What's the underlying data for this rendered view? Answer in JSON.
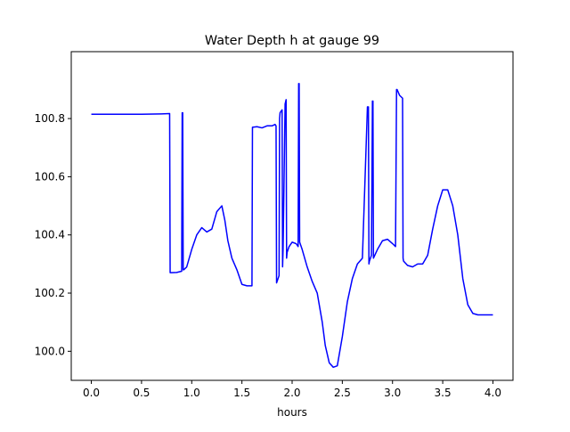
{
  "chart_data": {
    "type": "line",
    "title": "Water Depth h at gauge 99",
    "xlabel": "hours",
    "ylabel": "",
    "xlim": [
      -0.2,
      4.2
    ],
    "ylim": [
      99.9,
      101.03
    ],
    "xticks": [
      0.0,
      0.5,
      1.0,
      1.5,
      2.0,
      2.5,
      3.0,
      3.5,
      4.0
    ],
    "xtick_labels": [
      "0.0",
      "0.5",
      "1.0",
      "1.5",
      "2.0",
      "2.5",
      "3.0",
      "3.5",
      "4.0"
    ],
    "yticks": [
      100.0,
      100.2,
      100.4,
      100.6,
      100.8
    ],
    "ytick_labels": [
      "100.0",
      "100.2",
      "100.4",
      "100.6",
      "100.8"
    ],
    "grid": false,
    "series": [
      {
        "color": "#0000ff",
        "x": [
          0.0,
          0.3,
          0.5,
          0.7,
          0.78,
          0.785,
          0.8,
          0.85,
          0.9,
          0.905,
          0.91,
          0.915,
          0.92,
          0.95,
          1.0,
          1.05,
          1.1,
          1.15,
          1.2,
          1.25,
          1.3,
          1.33,
          1.36,
          1.4,
          1.45,
          1.5,
          1.55,
          1.58,
          1.6,
          1.605,
          1.65,
          1.7,
          1.75,
          1.8,
          1.83,
          1.84,
          1.845,
          1.87,
          1.875,
          1.88,
          1.9,
          1.905,
          1.91,
          1.93,
          1.94,
          1.945,
          1.95,
          1.97,
          2.0,
          2.04,
          2.06,
          2.065,
          2.07,
          2.075,
          2.1,
          2.15,
          2.2,
          2.25,
          2.3,
          2.33,
          2.37,
          2.41,
          2.45,
          2.5,
          2.55,
          2.6,
          2.65,
          2.7,
          2.75,
          2.76,
          2.765,
          2.77,
          2.79,
          2.8,
          2.805,
          2.81,
          2.85,
          2.9,
          2.95,
          3.0,
          3.03,
          3.04,
          3.045,
          3.07,
          3.1,
          3.105,
          3.11,
          3.15,
          3.2,
          3.25,
          3.3,
          3.35,
          3.4,
          3.45,
          3.5,
          3.55,
          3.6,
          3.65,
          3.7,
          3.75,
          3.8,
          3.85,
          3.9,
          3.95,
          4.0
        ],
        "y": [
          100.815,
          100.815,
          100.815,
          100.816,
          100.817,
          100.27,
          100.27,
          100.271,
          100.275,
          100.82,
          100.82,
          100.28,
          100.28,
          100.29,
          100.35,
          100.4,
          100.425,
          100.41,
          100.42,
          100.48,
          100.5,
          100.45,
          100.38,
          100.32,
          100.28,
          100.23,
          100.225,
          100.225,
          100.225,
          100.77,
          100.772,
          100.768,
          100.775,
          100.775,
          100.78,
          100.775,
          100.235,
          100.26,
          100.8,
          100.82,
          100.83,
          100.29,
          100.35,
          100.85,
          100.865,
          100.32,
          100.34,
          100.36,
          100.375,
          100.37,
          100.36,
          100.92,
          100.92,
          100.375,
          100.35,
          100.29,
          100.24,
          100.2,
          100.1,
          100.02,
          99.96,
          99.945,
          99.95,
          100.05,
          100.17,
          100.25,
          100.3,
          100.32,
          100.84,
          100.84,
          100.3,
          100.31,
          100.33,
          100.86,
          100.86,
          100.32,
          100.35,
          100.38,
          100.385,
          100.37,
          100.36,
          100.9,
          100.9,
          100.88,
          100.87,
          100.32,
          100.31,
          100.295,
          100.29,
          100.3,
          100.3,
          100.33,
          100.42,
          100.5,
          100.555,
          100.555,
          100.5,
          100.4,
          100.25,
          100.16,
          100.13,
          100.125,
          100.125,
          100.125,
          100.125
        ]
      }
    ]
  }
}
